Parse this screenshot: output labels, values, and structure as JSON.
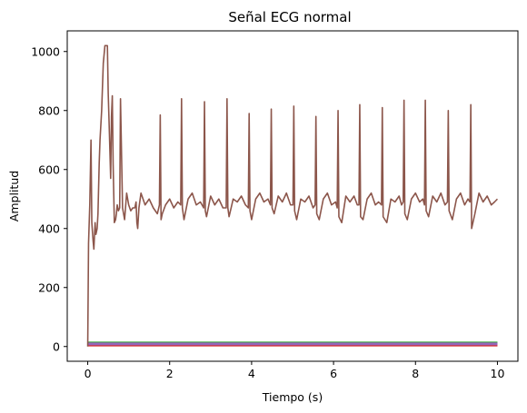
{
  "chart_data": {
    "type": "line",
    "title": "Señal ECG normal",
    "xlabel": "Tiempo (s)",
    "ylabel": "Amplitud",
    "xlim": [
      -0.5,
      10.5
    ],
    "ylim": [
      -50,
      1070
    ],
    "xticks": [
      0,
      2,
      4,
      6,
      8,
      10
    ],
    "yticks": [
      0,
      200,
      400,
      600,
      800,
      1000
    ],
    "xtick_labels": [
      "0",
      "2",
      "4",
      "6",
      "8",
      "10"
    ],
    "ytick_labels": [
      "0",
      "200",
      "400",
      "600",
      "800",
      "1000"
    ],
    "grid": false,
    "legend": "none",
    "baseline_series": [
      {
        "color": "#1f77b4",
        "values": [
          10,
          10
        ]
      },
      {
        "color": "#ff7f0e",
        "values": [
          7,
          7
        ]
      },
      {
        "color": "#2ca02c",
        "values": [
          12,
          12
        ]
      },
      {
        "color": "#d62728",
        "values": [
          5,
          5
        ]
      },
      {
        "color": "#9467bd",
        "values": [
          9,
          9
        ]
      }
    ],
    "main_series": {
      "color": "#8c564b",
      "x": [
        0,
        0.02,
        0.05,
        0.08,
        0.1,
        0.13,
        0.15,
        0.18,
        0.2,
        0.23,
        0.25,
        0.28,
        0.3,
        0.34,
        0.38,
        0.42,
        0.45,
        0.48,
        0.5,
        0.53,
        0.56,
        0.58,
        0.6,
        0.62,
        0.65,
        0.68,
        0.7,
        0.72,
        0.75,
        0.78,
        0.8,
        0.85,
        0.9,
        0.95,
        1.0,
        1.05,
        1.1,
        1.15,
        1.18,
        1.2,
        1.22,
        1.25,
        1.3,
        1.4,
        1.5,
        1.6,
        1.7,
        1.75,
        1.77,
        1.79,
        1.82,
        1.9,
        2.0,
        2.1,
        2.2,
        2.27,
        2.29,
        2.31,
        2.35,
        2.45,
        2.55,
        2.65,
        2.75,
        2.83,
        2.85,
        2.87,
        2.9,
        3.0,
        3.1,
        3.2,
        3.3,
        3.38,
        3.4,
        3.42,
        3.45,
        3.55,
        3.65,
        3.75,
        3.85,
        3.92,
        3.94,
        3.96,
        4.0,
        4.1,
        4.2,
        4.3,
        4.4,
        4.46,
        4.48,
        4.5,
        4.55,
        4.65,
        4.75,
        4.85,
        4.95,
        5.01,
        5.03,
        5.05,
        5.1,
        5.2,
        5.3,
        5.4,
        5.5,
        5.55,
        5.57,
        5.59,
        5.65,
        5.75,
        5.85,
        5.95,
        6.05,
        6.09,
        6.11,
        6.13,
        6.2,
        6.3,
        6.4,
        6.5,
        6.58,
        6.62,
        6.64,
        6.66,
        6.72,
        6.82,
        6.92,
        7.02,
        7.1,
        7.17,
        7.19,
        7.21,
        7.3,
        7.4,
        7.5,
        7.6,
        7.66,
        7.7,
        7.72,
        7.74,
        7.8,
        7.9,
        8.0,
        8.1,
        8.18,
        8.22,
        8.24,
        8.26,
        8.32,
        8.42,
        8.52,
        8.62,
        8.72,
        8.78,
        8.8,
        8.82,
        8.9,
        9.0,
        9.1,
        9.2,
        9.28,
        9.33,
        9.35,
        9.37,
        9.45,
        9.55,
        9.65,
        9.75,
        9.85,
        9.93,
        10.0
      ],
      "values": [
        0,
        350,
        480,
        700,
        420,
        360,
        330,
        420,
        380,
        400,
        450,
        620,
        700,
        800,
        960,
        1020,
        1020,
        1020,
        860,
        720,
        570,
        780,
        850,
        620,
        420,
        430,
        450,
        480,
        460,
        470,
        840,
        470,
        430,
        520,
        480,
        460,
        470,
        470,
        490,
        420,
        400,
        470,
        520,
        480,
        500,
        470,
        450,
        480,
        785,
        430,
        450,
        480,
        500,
        470,
        490,
        480,
        840,
        470,
        430,
        500,
        520,
        480,
        490,
        470,
        830,
        460,
        440,
        510,
        480,
        500,
        470,
        470,
        840,
        470,
        440,
        500,
        490,
        510,
        480,
        470,
        790,
        460,
        430,
        500,
        520,
        490,
        500,
        480,
        805,
        470,
        450,
        510,
        490,
        520,
        480,
        480,
        815,
        460,
        430,
        500,
        490,
        510,
        470,
        480,
        780,
        450,
        430,
        500,
        520,
        480,
        490,
        470,
        800,
        440,
        420,
        510,
        490,
        510,
        480,
        480,
        820,
        440,
        430,
        500,
        520,
        480,
        490,
        480,
        810,
        440,
        420,
        500,
        490,
        510,
        480,
        490,
        835,
        450,
        430,
        500,
        520,
        490,
        500,
        480,
        835,
        460,
        440,
        510,
        490,
        520,
        480,
        490,
        800,
        460,
        430,
        500,
        520,
        480,
        500,
        490,
        820,
        400,
        450,
        520,
        490,
        510,
        480,
        490,
        500
      ]
    }
  }
}
